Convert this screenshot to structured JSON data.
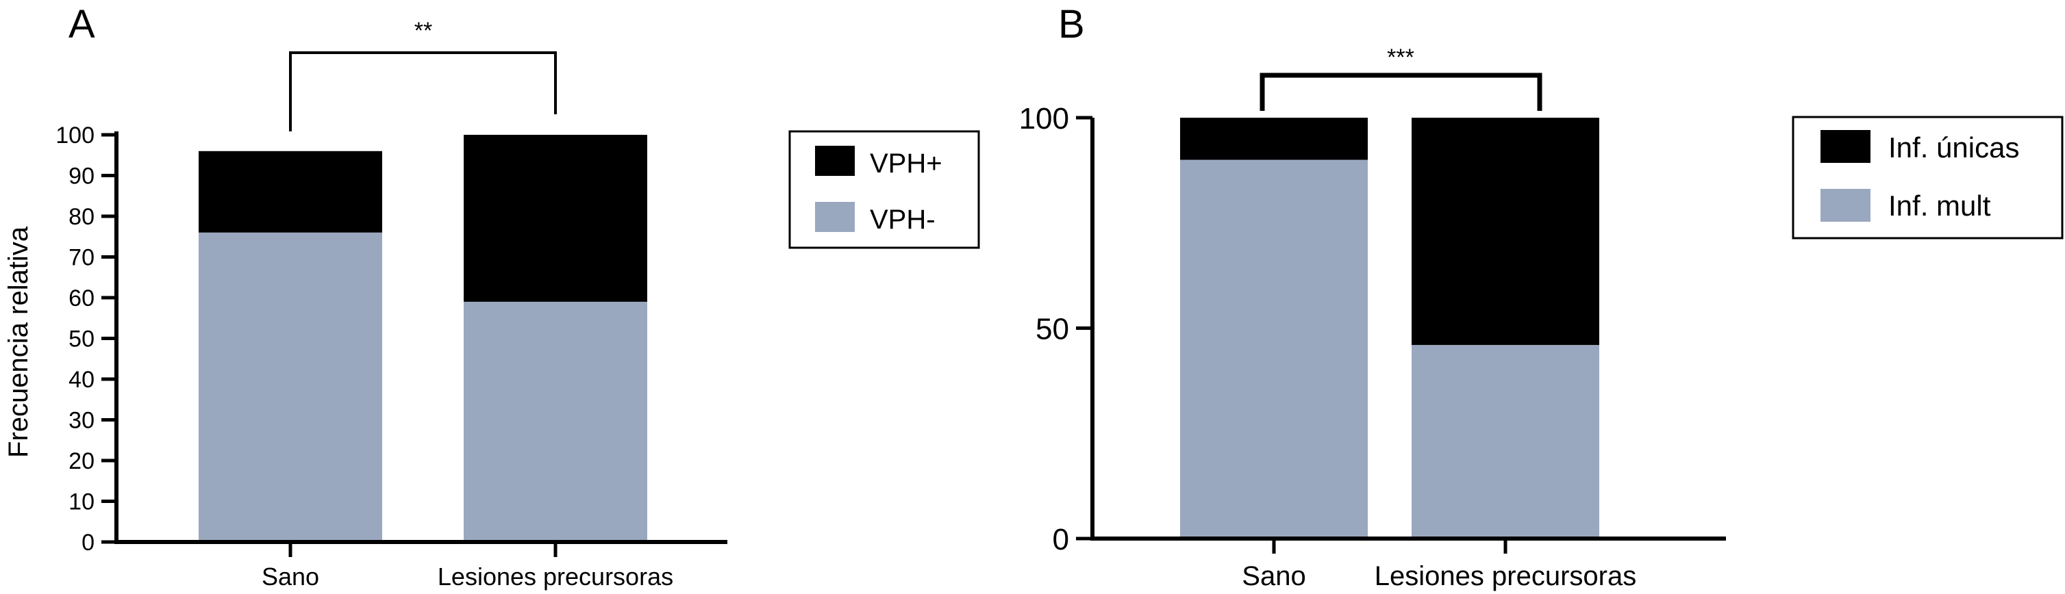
{
  "chart_data": [
    {
      "type": "bar",
      "stacked": true,
      "panel_label": "A",
      "categories": [
        "Sano",
        "Lesiones precursoras"
      ],
      "series": [
        {
          "name": "VPH-",
          "color": "#9aa8bf",
          "values": [
            76,
            59
          ]
        },
        {
          "name": "VPH+",
          "color": "#000000",
          "values": [
            20,
            41
          ]
        }
      ],
      "ylabel": "Frecuencia relativa",
      "ylim": [
        0,
        100
      ],
      "yticks": [
        "0",
        "10",
        "20",
        "30",
        "40",
        "50",
        "60",
        "70",
        "80",
        "90",
        "100"
      ],
      "significance": "**",
      "legend": {
        "placement": "right",
        "items": [
          "VPH+",
          "VPH-"
        ]
      },
      "grid": false
    },
    {
      "type": "bar",
      "stacked": true,
      "panel_label": "B",
      "categories": [
        "Sano",
        "Lesiones precursoras"
      ],
      "series": [
        {
          "name": "Inf. mult",
          "color": "#9aa8bf",
          "values": [
            90,
            46
          ]
        },
        {
          "name": "Inf. únicas",
          "color": "#000000",
          "values": [
            10,
            54
          ]
        }
      ],
      "ylabel": "",
      "ylim": [
        0,
        100
      ],
      "yticks": [
        "0",
        "50",
        "100"
      ],
      "significance": "***",
      "legend": {
        "placement": "right",
        "items": [
          "Inf. únicas",
          "Inf. mult"
        ]
      },
      "grid": false
    }
  ]
}
